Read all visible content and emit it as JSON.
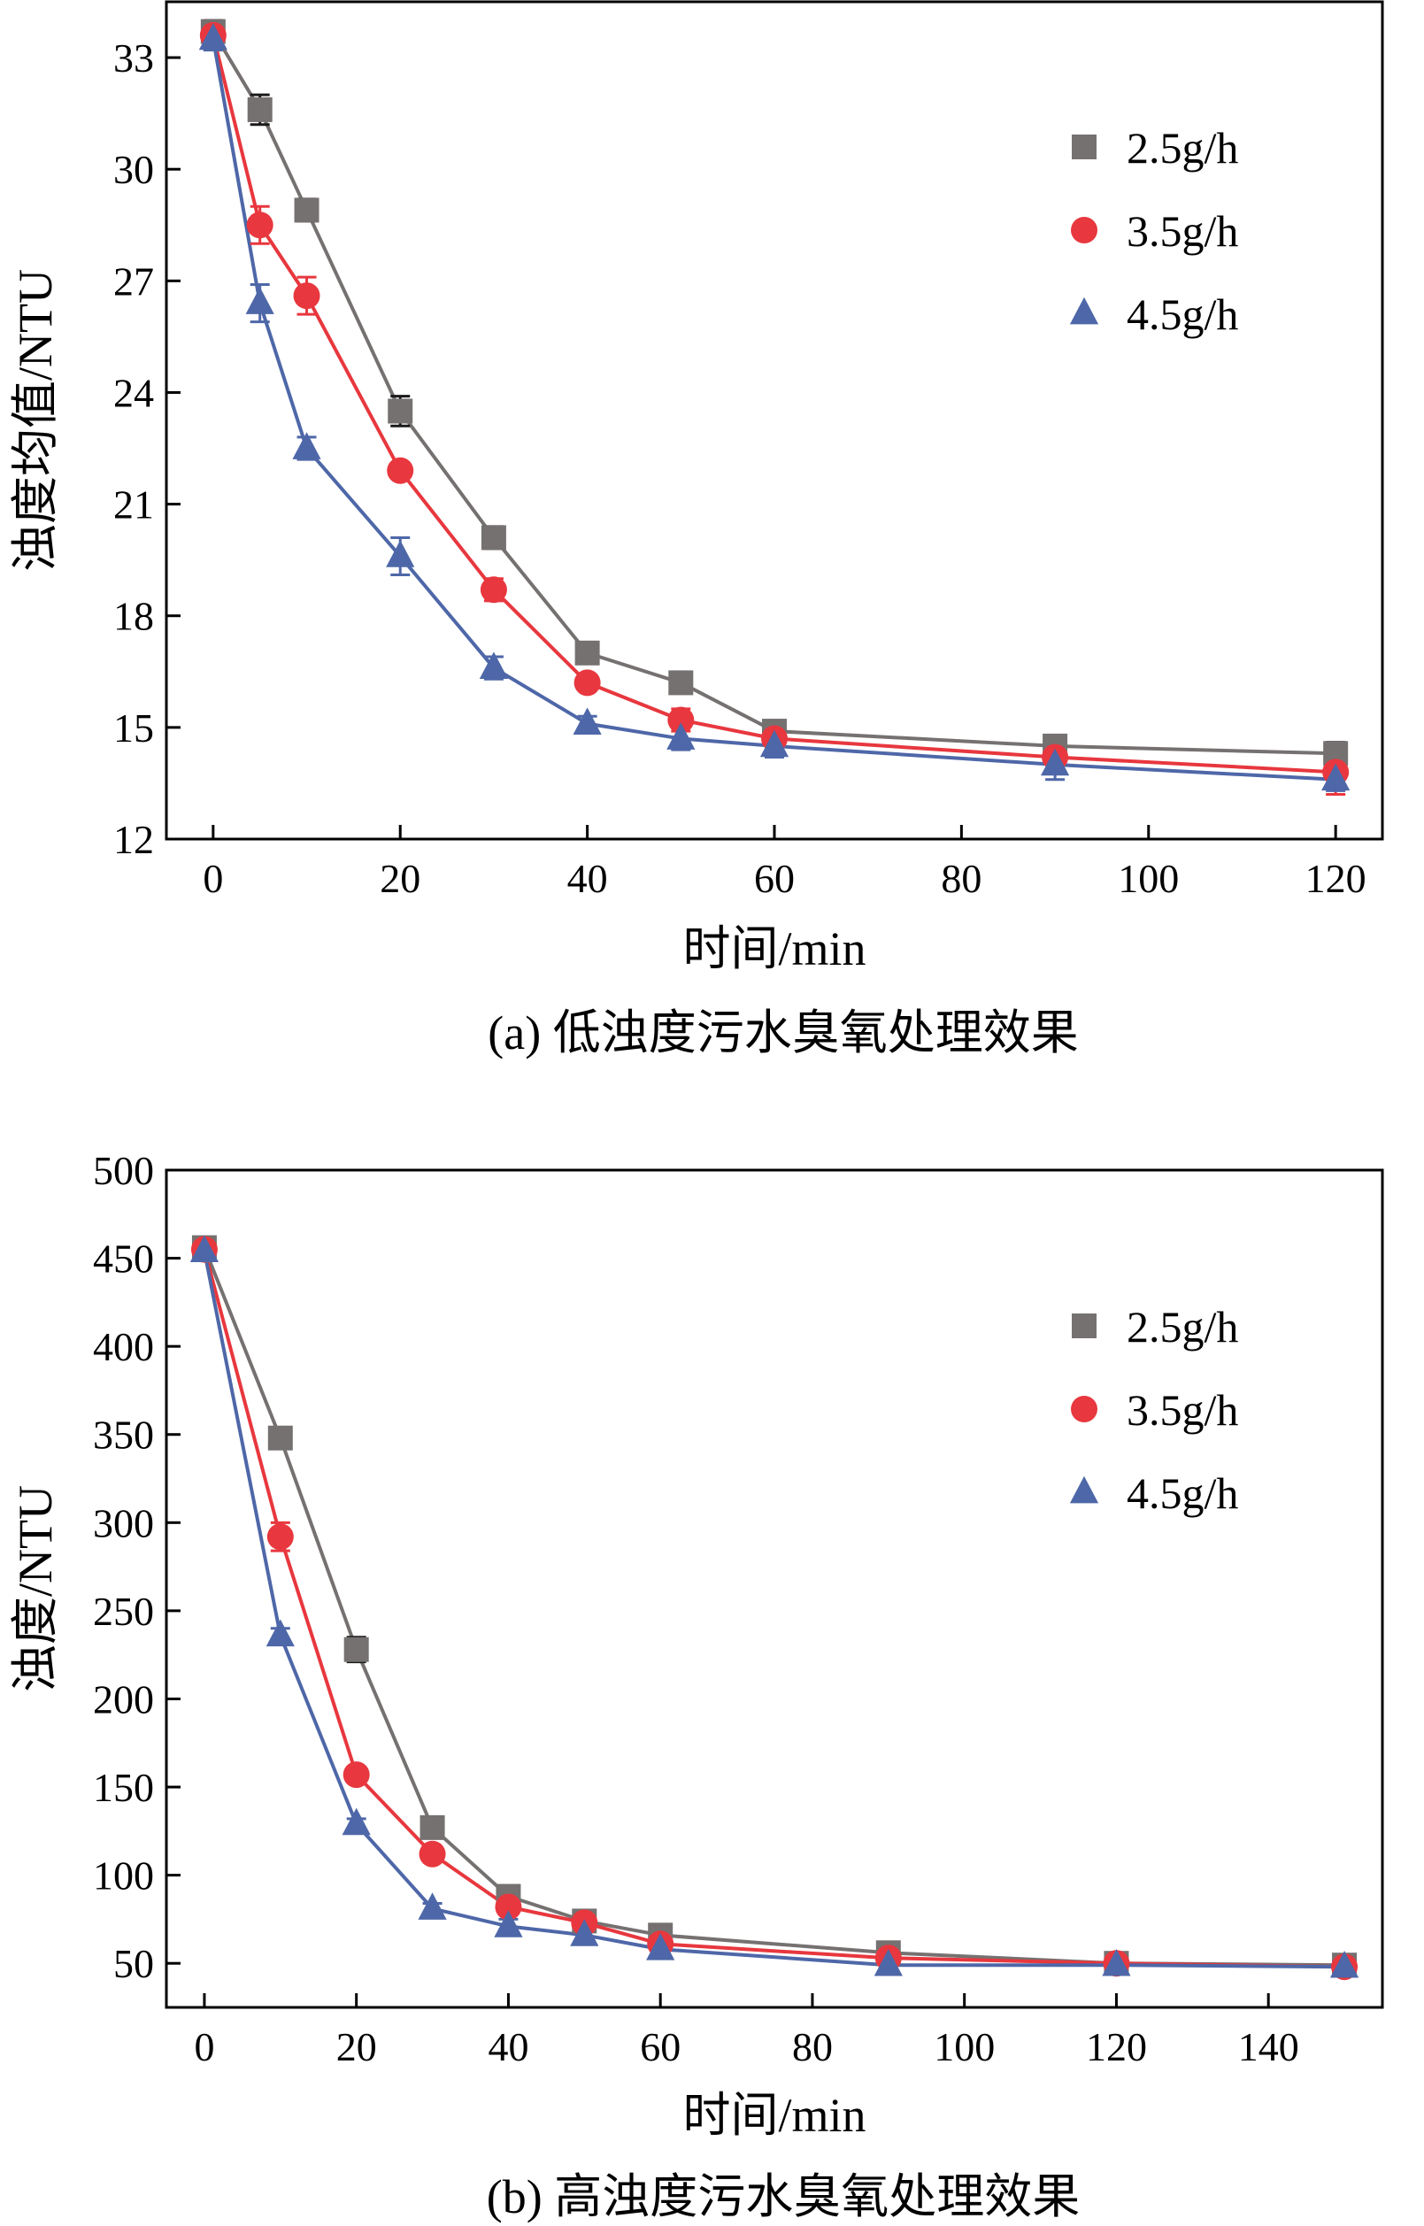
{
  "chart_data": [
    {
      "type": "line",
      "title": "",
      "caption": "(a) 低浊度污水臭氧处理效果",
      "xlabel": "时间/min",
      "ylabel": "浊度均值/NTU",
      "xlim": [
        -5,
        125
      ],
      "ylim": [
        12,
        34.5
      ],
      "xticks": [
        0,
        20,
        40,
        60,
        80,
        100,
        120
      ],
      "yticks": [
        12,
        15,
        18,
        21,
        24,
        27,
        30,
        33
      ],
      "legend_position": "top-right",
      "x": [
        0,
        5,
        10,
        20,
        30,
        40,
        50,
        60,
        90,
        120
      ],
      "series": [
        {
          "name": "2.5g/h",
          "marker": "square",
          "color": "#767171",
          "values": [
            33.7,
            31.6,
            28.9,
            23.5,
            20.1,
            17.0,
            16.2,
            14.9,
            14.5,
            14.3
          ],
          "errors": [
            0.3,
            0.4,
            0.3,
            0.4,
            0.3,
            0.2,
            0.2,
            0.2,
            0.2,
            0.3
          ]
        },
        {
          "name": "3.5g/h",
          "marker": "circle",
          "color": "#E8373E",
          "values": [
            33.6,
            28.5,
            26.6,
            21.9,
            18.7,
            16.2,
            15.2,
            14.7,
            14.2,
            13.8
          ],
          "errors": [
            0.3,
            0.5,
            0.5,
            0.2,
            0.3,
            0.2,
            0.3,
            0.3,
            0.4,
            0.6
          ]
        },
        {
          "name": "4.5g/h",
          "marker": "triangle",
          "color": "#4E67A8",
          "values": [
            33.5,
            26.4,
            22.5,
            19.6,
            16.6,
            15.1,
            14.7,
            14.5,
            14.0,
            13.6
          ],
          "errors": [
            0.3,
            0.5,
            0.3,
            0.5,
            0.3,
            0.2,
            0.3,
            0.3,
            0.4,
            0.3
          ]
        }
      ]
    },
    {
      "type": "line",
      "title": "",
      "caption": "(b) 高浊度污水臭氧处理效果",
      "xlabel": "时间/min",
      "ylabel": "浊度/NTU",
      "xlim": [
        -5,
        155
      ],
      "ylim": [
        25,
        500
      ],
      "xticks": [
        0,
        20,
        40,
        60,
        80,
        100,
        120,
        140
      ],
      "yticks": [
        50,
        100,
        150,
        200,
        250,
        300,
        350,
        400,
        450,
        500
      ],
      "legend_position": "top-right",
      "x": [
        0,
        10,
        20,
        30,
        40,
        50,
        60,
        90,
        120,
        150
      ],
      "series": [
        {
          "name": "2.5g/h",
          "marker": "square",
          "color": "#767171",
          "values": [
            456,
            348,
            228,
            127,
            88,
            74,
            66,
            56,
            50,
            49
          ],
          "errors": [
            5,
            6,
            7,
            5,
            3,
            3,
            3,
            3,
            2,
            2
          ]
        },
        {
          "name": "3.5g/h",
          "marker": "circle",
          "color": "#E8373E",
          "values": [
            455,
            292,
            157,
            112,
            82,
            73,
            61,
            53,
            50,
            48
          ],
          "errors": [
            5,
            8,
            4,
            3,
            3,
            3,
            3,
            3,
            2,
            2
          ]
        },
        {
          "name": "4.5g/h",
          "marker": "triangle",
          "color": "#4E67A8",
          "values": [
            454,
            236,
            129,
            81,
            71,
            66,
            58,
            49,
            49,
            48
          ],
          "errors": [
            5,
            4,
            3,
            3,
            4,
            4,
            3,
            3,
            2,
            2
          ]
        }
      ]
    }
  ]
}
